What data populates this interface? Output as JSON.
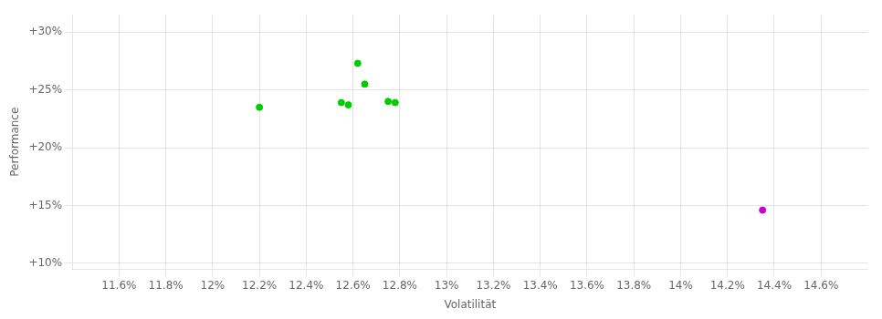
{
  "chart_data": {
    "type": "scatter",
    "xlabel": "Volatilität",
    "ylabel": "Performance",
    "xlim": [
      11.4,
      14.8
    ],
    "ylim": [
      9.5,
      31.5
    ],
    "xticks": [
      {
        "value": 11.6,
        "label": "11.6%"
      },
      {
        "value": 11.8,
        "label": "11.8%"
      },
      {
        "value": 12.0,
        "label": "12%"
      },
      {
        "value": 12.2,
        "label": "12.2%"
      },
      {
        "value": 12.4,
        "label": "12.4%"
      },
      {
        "value": 12.6,
        "label": "12.6%"
      },
      {
        "value": 12.8,
        "label": "12.8%"
      },
      {
        "value": 13.0,
        "label": "13%"
      },
      {
        "value": 13.2,
        "label": "13.2%"
      },
      {
        "value": 13.4,
        "label": "13.4%"
      },
      {
        "value": 13.6,
        "label": "13.6%"
      },
      {
        "value": 13.8,
        "label": "13.8%"
      },
      {
        "value": 14.0,
        "label": "14%"
      },
      {
        "value": 14.2,
        "label": "14.2%"
      },
      {
        "value": 14.4,
        "label": "14.4%"
      },
      {
        "value": 14.6,
        "label": "14.6%"
      }
    ],
    "yticks": [
      {
        "value": 10,
        "label": "+10%"
      },
      {
        "value": 15,
        "label": "+15%"
      },
      {
        "value": 20,
        "label": "+20%"
      },
      {
        "value": 25,
        "label": "+25%"
      },
      {
        "value": 30,
        "label": "+30%"
      }
    ],
    "grid": true,
    "series": [
      {
        "color": "#00cc00",
        "x": [
          12.2,
          12.55,
          12.58,
          12.62,
          12.65,
          12.75,
          12.78
        ],
        "values": [
          23.5,
          23.9,
          23.7,
          27.3,
          25.5,
          24.0,
          23.9
        ]
      },
      {
        "color": "#cc00cc",
        "x": [
          14.35
        ],
        "values": [
          14.6
        ]
      }
    ]
  }
}
